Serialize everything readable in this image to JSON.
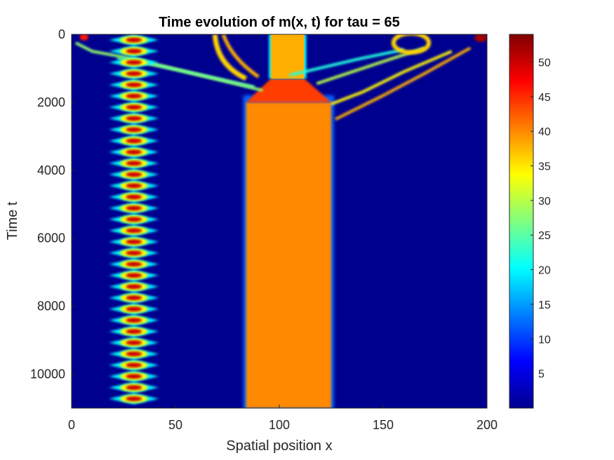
{
  "chart_data": {
    "type": "heatmap",
    "title": "Time evolution of m(x, t) for tau = 65",
    "xlabel": "Spatial position x",
    "ylabel": "Time t",
    "xlim": [
      0,
      200
    ],
    "ylim": [
      0,
      11000
    ],
    "y_reversed": true,
    "colormap": "jet",
    "x_ticks": [
      0,
      50,
      100,
      150,
      200
    ],
    "y_ticks": [
      0,
      2000,
      4000,
      6000,
      8000,
      10000
    ],
    "colorbar": {
      "min": 0,
      "max": 54,
      "ticks": [
        5,
        10,
        15,
        20,
        25,
        30,
        35,
        40,
        45,
        50
      ]
    },
    "features": {
      "oscillating_stripe": {
        "x_center": 30,
        "x_range": [
          18,
          42
        ],
        "peak_value": 54,
        "period_t": 330
      },
      "plateau": {
        "x_range": [
          84,
          125
        ],
        "value": 40,
        "t_from": 2000,
        "t_to": 11000
      },
      "early_band": {
        "x_range": [
          96,
          112
        ],
        "value": 38,
        "t_from": 0,
        "t_to": 1300
      },
      "left_arc": {
        "x_range": [
          68,
          82
        ],
        "value": 38,
        "t_from": 0,
        "t_to": 1300
      },
      "right_blob": {
        "x_range": [
          155,
          172
        ],
        "value": 36,
        "t_from": 0,
        "t_to": 500
      },
      "edge_spot": {
        "x": 197,
        "value": 52,
        "t": 100
      }
    }
  }
}
